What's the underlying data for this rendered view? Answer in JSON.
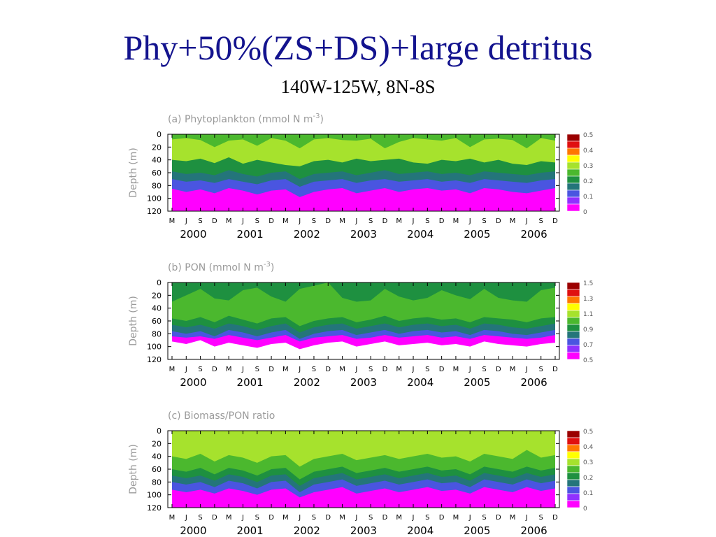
{
  "slide": {
    "title": "Phy+50%(ZS+DS)+large detritus",
    "subtitle": "140W-125W, 8N-8S"
  },
  "chart_data": [
    {
      "type": "heatmap",
      "title": "(a) Phytoplankton (mmol N m",
      "title_sup": "-3",
      "title_close": ")",
      "ylabel": "Depth (m)",
      "y_ticks": [
        "0",
        "20",
        "40",
        "60",
        "80",
        "100",
        "120"
      ],
      "ylim": [
        0,
        120
      ],
      "month_ticks": [
        "M",
        "J",
        "S",
        "D",
        "M",
        "J",
        "S",
        "D",
        "M",
        "J",
        "S",
        "D",
        "M",
        "J",
        "S",
        "D",
        "M",
        "J",
        "S",
        "D",
        "M",
        "J",
        "S",
        "D",
        "M",
        "J",
        "S",
        "D"
      ],
      "years": [
        "2000",
        "2001",
        "2002",
        "2003",
        "2004",
        "2005",
        "2006"
      ],
      "colorbar": {
        "labels": [
          "0.5",
          "0.4",
          "0.3",
          "0.2",
          "0.1",
          "0"
        ],
        "colors": [
          "#9b0000",
          "#e01010",
          "#ff7700",
          "#ffff00",
          "#a6e22d",
          "#4bb82e",
          "#1e9040",
          "#24757a",
          "#4a55e0",
          "#9030ff",
          "#ff00ff"
        ]
      },
      "contour_levels": [
        {
          "value": 0.25,
          "color": "#a6e22d",
          "depth_m": [
            8,
            6,
            9,
            20,
            10,
            8,
            18,
            6,
            10,
            22,
            8,
            6,
            9,
            10,
            7,
            22,
            12,
            6,
            8,
            10,
            6,
            20,
            8,
            7,
            9,
            22,
            6,
            10
          ]
        },
        {
          "value": 0.15,
          "color": "#1e9040",
          "depth_m": [
            40,
            42,
            38,
            45,
            36,
            46,
            40,
            44,
            48,
            50,
            42,
            40,
            44,
            38,
            42,
            40,
            38,
            44,
            46,
            40,
            42,
            38,
            44,
            40,
            46,
            48,
            42,
            44
          ]
        },
        {
          "value": 0.1,
          "color": "#24757a",
          "depth_m": [
            58,
            62,
            60,
            64,
            56,
            62,
            66,
            60,
            58,
            70,
            62,
            60,
            58,
            64,
            60,
            56,
            62,
            60,
            58,
            62,
            60,
            64,
            58,
            60,
            62,
            64,
            60,
            58
          ]
        },
        {
          "value": 0.05,
          "color": "#4a55e0",
          "depth_m": [
            70,
            74,
            72,
            76,
            70,
            74,
            78,
            72,
            70,
            82,
            74,
            72,
            70,
            76,
            72,
            70,
            74,
            72,
            70,
            74,
            72,
            76,
            70,
            72,
            74,
            76,
            72,
            70
          ]
        },
        {
          "value": 0.02,
          "color": "#ff00ff",
          "depth_m": [
            85,
            90,
            86,
            92,
            84,
            88,
            94,
            88,
            86,
            98,
            90,
            86,
            84,
            92,
            88,
            84,
            90,
            86,
            84,
            88,
            86,
            92,
            84,
            86,
            90,
            92,
            88,
            84
          ]
        }
      ]
    },
    {
      "type": "heatmap",
      "title": "(b) PON (mmol N m",
      "title_sup": "-3",
      "title_close": ")",
      "ylabel": "Depth (m)",
      "y_ticks": [
        "0",
        "20",
        "40",
        "60",
        "80",
        "100",
        "120"
      ],
      "ylim": [
        0,
        120
      ],
      "month_ticks": [
        "M",
        "J",
        "S",
        "D",
        "M",
        "J",
        "S",
        "D",
        "M",
        "J",
        "S",
        "D",
        "M",
        "J",
        "S",
        "D",
        "M",
        "J",
        "S",
        "D",
        "M",
        "J",
        "S",
        "D",
        "M",
        "J",
        "S",
        "D"
      ],
      "years": [
        "2000",
        "2001",
        "2002",
        "2003",
        "2004",
        "2005",
        "2006"
      ],
      "colorbar": {
        "labels": [
          "1.5",
          "1.3",
          "1.1",
          "0.9",
          "0.7",
          "0.5"
        ],
        "colors": [
          "#9b0000",
          "#e01010",
          "#ff7700",
          "#ffff00",
          "#a6e22d",
          "#4bb82e",
          "#1e9040",
          "#24757a",
          "#4a55e0",
          "#9030ff",
          "#ff00ff"
        ]
      },
      "contour_levels": [
        {
          "value": 1.0,
          "color": "#4bb82e",
          "depth_m": [
            30,
            20,
            10,
            25,
            28,
            12,
            8,
            22,
            30,
            10,
            5,
            0,
            24,
            30,
            28,
            10,
            22,
            28,
            24,
            12,
            20,
            26,
            10,
            24,
            28,
            30,
            12,
            8
          ]
        },
        {
          "value": 0.9,
          "color": "#1e9040",
          "depth_m": [
            56,
            60,
            54,
            62,
            52,
            58,
            64,
            56,
            54,
            68,
            60,
            56,
            54,
            62,
            58,
            52,
            60,
            56,
            54,
            58,
            56,
            62,
            54,
            56,
            58,
            62,
            56,
            54
          ]
        },
        {
          "value": 0.8,
          "color": "#24757a",
          "depth_m": [
            66,
            70,
            66,
            72,
            64,
            68,
            74,
            68,
            64,
            78,
            70,
            66,
            64,
            72,
            68,
            64,
            70,
            66,
            64,
            68,
            66,
            72,
            64,
            66,
            70,
            72,
            68,
            64
          ]
        },
        {
          "value": 0.7,
          "color": "#4a55e0",
          "depth_m": [
            76,
            80,
            76,
            84,
            74,
            78,
            84,
            78,
            74,
            88,
            80,
            76,
            74,
            82,
            78,
            74,
            80,
            76,
            74,
            78,
            76,
            82,
            74,
            76,
            80,
            82,
            78,
            74
          ]
        },
        {
          "value": 0.6,
          "color": "#ff00ff",
          "depth_m": [
            84,
            86,
            84,
            88,
            82,
            86,
            90,
            86,
            82,
            92,
            86,
            84,
            82,
            88,
            86,
            82,
            86,
            84,
            82,
            86,
            84,
            88,
            82,
            84,
            86,
            88,
            86,
            82
          ]
        },
        {
          "value": 0.5,
          "color": "#ffffff",
          "depth_m": [
            92,
            96,
            90,
            100,
            94,
            98,
            102,
            96,
            94,
            104,
            98,
            94,
            92,
            100,
            96,
            92,
            98,
            96,
            94,
            98,
            96,
            100,
            92,
            96,
            98,
            100,
            96,
            94
          ]
        }
      ]
    },
    {
      "type": "heatmap",
      "title": "(c) Biomass/PON ratio",
      "title_sup": "",
      "title_close": "",
      "ylabel": "Depth (m)",
      "y_ticks": [
        "0",
        "20",
        "40",
        "60",
        "80",
        "100",
        "120"
      ],
      "ylim": [
        0,
        120
      ],
      "month_ticks": [
        "M",
        "J",
        "S",
        "D",
        "M",
        "J",
        "S",
        "D",
        "M",
        "J",
        "S",
        "D",
        "M",
        "J",
        "S",
        "D",
        "M",
        "J",
        "S",
        "D",
        "M",
        "J",
        "S",
        "D",
        "M",
        "J",
        "S",
        "D"
      ],
      "years": [
        "2000",
        "2001",
        "2002",
        "2003",
        "2004",
        "2005",
        "2006"
      ],
      "colorbar": {
        "labels": [
          "0.5",
          "0.4",
          "0.3",
          "0.2",
          "0.1",
          "0"
        ],
        "colors": [
          "#9b0000",
          "#e01010",
          "#ff7700",
          "#ffff00",
          "#a6e22d",
          "#4bb82e",
          "#1e9040",
          "#24757a",
          "#4a55e0",
          "#9030ff",
          "#ff00ff"
        ]
      },
      "contour_levels": [
        {
          "value": 0.25,
          "color": "#4bb82e",
          "depth_m": [
            40,
            44,
            36,
            48,
            38,
            42,
            50,
            40,
            38,
            56,
            44,
            40,
            36,
            46,
            42,
            38,
            44,
            40,
            36,
            42,
            40,
            48,
            36,
            40,
            44,
            30,
            42,
            38
          ]
        },
        {
          "value": 0.2,
          "color": "#1e9040",
          "depth_m": [
            60,
            64,
            58,
            68,
            58,
            62,
            70,
            60,
            58,
            76,
            64,
            60,
            56,
            66,
            62,
            58,
            64,
            60,
            56,
            62,
            60,
            68,
            56,
            60,
            64,
            56,
            62,
            58
          ]
        },
        {
          "value": 0.15,
          "color": "#24757a",
          "depth_m": [
            70,
            74,
            70,
            78,
            68,
            72,
            80,
            70,
            68,
            86,
            74,
            70,
            66,
            76,
            72,
            68,
            74,
            70,
            66,
            72,
            70,
            78,
            66,
            70,
            74,
            66,
            72,
            68
          ]
        },
        {
          "value": 0.1,
          "color": "#4a55e0",
          "depth_m": [
            80,
            84,
            80,
            88,
            78,
            82,
            90,
            80,
            78,
            96,
            84,
            80,
            76,
            86,
            82,
            78,
            84,
            80,
            76,
            82,
            80,
            88,
            76,
            80,
            84,
            76,
            82,
            78
          ]
        },
        {
          "value": 0.05,
          "color": "#ff00ff",
          "depth_m": [
            92,
            96,
            92,
            98,
            90,
            94,
            100,
            92,
            90,
            104,
            96,
            92,
            88,
            98,
            94,
            90,
            96,
            92,
            88,
            94,
            92,
            98,
            88,
            92,
            96,
            88,
            94,
            90
          ]
        }
      ]
    }
  ]
}
